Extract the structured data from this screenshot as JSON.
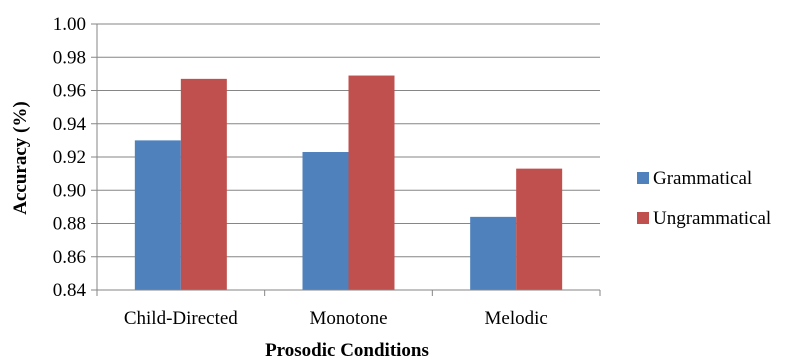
{
  "chart_data": {
    "type": "bar",
    "title": "",
    "xlabel": "Prosodic Conditions",
    "ylabel": "Accuracy (%)",
    "categories": [
      "Child-Directed",
      "Monotone",
      "Melodic"
    ],
    "series": [
      {
        "name": "Grammatical",
        "values": [
          0.93,
          0.923,
          0.884
        ],
        "color": "#4f81bd"
      },
      {
        "name": "Ungrammatical",
        "values": [
          0.967,
          0.969,
          0.913
        ],
        "color": "#c0504d"
      }
    ],
    "ylim": [
      0.84,
      1.0
    ],
    "yticks": [
      "0.84",
      "0.86",
      "0.88",
      "0.90",
      "0.92",
      "0.94",
      "0.96",
      "0.98",
      "1.00"
    ],
    "grid": true,
    "legend_position": "right"
  }
}
